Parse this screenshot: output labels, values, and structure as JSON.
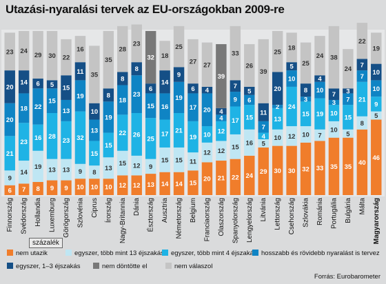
{
  "title": "Utazási-nyaralási tervek az EU-országokban 2009-re",
  "unit_label": "százalék",
  "source": "Forrás: Eurobarometer",
  "legend": [
    {
      "key": "nem_utazik",
      "label": "nem utazik",
      "color": "#f07d2b"
    },
    {
      "key": "egyszer_13",
      "label": "egyszer, több mint 13 éjszakás",
      "color": "#bfe6f3"
    },
    {
      "key": "egyszer_4",
      "label": "egyszer, több mint 4 éjszakás",
      "color": "#1fb3e5"
    },
    {
      "key": "hosszabb_rovid",
      "label": "hosszabb és rövidebb nyaralást is tervez",
      "color": "#0f84c4"
    },
    {
      "key": "egyszer_1_3",
      "label": "egyszer, 1–3 éjszakás",
      "color": "#154f86"
    },
    {
      "key": "nem_dontotte",
      "label": "nem döntötte el",
      "color": "#787878"
    },
    {
      "key": "nem_valaszol",
      "label": "nem válaszol",
      "color": "#c4c4c4"
    }
  ],
  "chart_data": {
    "type": "bar",
    "stacked": true,
    "title": "Utazási-nyaralási tervek az EU-országokban 2009-re",
    "ylabel": "százalék",
    "ylim": [
      0,
      100
    ],
    "categories": [
      "Finnország",
      "Svédország",
      "Hollandia",
      "Luxemburg",
      "Görögország",
      "Szlovénia",
      "Ciprus",
      "Írország",
      "Nagy-Britannia",
      "Dánia",
      "Észtország",
      "Ausztria",
      "Németország",
      "Belgium",
      "Franciaország",
      "Olaszország",
      "Spanyolország",
      "Lengyelország",
      "Litvánia",
      "Lettország",
      "Csehország",
      "Szlovákia",
      "Románia",
      "Portugália",
      "Bulgária",
      "Málta",
      "Magyarország"
    ],
    "series": [
      {
        "name": "nem utazik",
        "key": "nem_utazik",
        "values": [
          6,
          7,
          8,
          9,
          9,
          10,
          10,
          10,
          12,
          12,
          13,
          14,
          14,
          15,
          20,
          21,
          22,
          24,
          29,
          30,
          30,
          32,
          33,
          35,
          35,
          40,
          46
        ]
      },
      {
        "name": "egyszer, több mint 13 éjszakás",
        "key": "egyszer_13",
        "values": [
          9,
          14,
          19,
          13,
          13,
          9,
          8,
          13,
          15,
          12,
          9,
          15,
          15,
          11,
          12,
          12,
          15,
          16,
          5,
          10,
          12,
          10,
          7,
          10,
          5,
          8,
          5
        ]
      },
      {
        "name": "egyszer, több mint 4 éjszakás",
        "key": "egyszer_4",
        "values": [
          21,
          23,
          16,
          28,
          23,
          32,
          15,
          15,
          22,
          26,
          25,
          17,
          21,
          19,
          10,
          12,
          17,
          15,
          4,
          13,
          24,
          15,
          19,
          10,
          15,
          21,
          9
        ]
      },
      {
        "name": "hosszabb és rövidebb nyaralást is tervez",
        "key": "hosszabb_rovid",
        "values": [
          20,
          18,
          22,
          15,
          13,
          19,
          13,
          19,
          18,
          23,
          15,
          16,
          19,
          17,
          20,
          4,
          9,
          6,
          7,
          2,
          10,
          3,
          10,
          3,
          7,
          7,
          10
        ]
      },
      {
        "name": "egyszer, 1–3 éjszakás",
        "key": "egyszer_1_3",
        "values": [
          20,
          14,
          6,
          5,
          15,
          11,
          10,
          8,
          8,
          8,
          6,
          14,
          9,
          6,
          4,
          4,
          7,
          5,
          11,
          20,
          5,
          8,
          4,
          7,
          3,
          7,
          10
        ]
      },
      {
        "name": "nem döntötte el",
        "key": "nem_dontotte",
        "values": [
          0,
          0,
          0,
          0,
          0,
          0,
          0,
          0,
          0,
          0,
          32,
          0,
          0,
          0,
          0,
          39,
          0,
          0,
          0,
          0,
          0,
          0,
          0,
          0,
          0,
          0,
          0
        ]
      },
      {
        "name": "nem válaszol",
        "key": "nem_valaszol",
        "values": [
          23,
          24,
          29,
          30,
          22,
          16,
          35,
          35,
          28,
          23,
          0,
          18,
          25,
          27,
          27,
          0,
          33,
          26,
          39,
          25,
          18,
          25,
          24,
          38,
          24,
          22,
          19
        ]
      }
    ]
  }
}
